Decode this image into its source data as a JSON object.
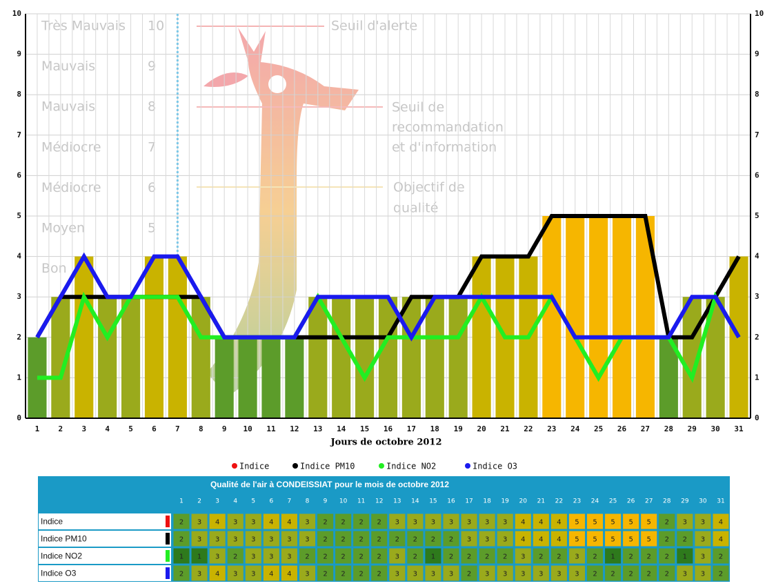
{
  "chart_data": {
    "type": "bar",
    "x_label": "Jours de octobre 2012",
    "categories": [
      "1",
      "2",
      "3",
      "4",
      "5",
      "6",
      "7",
      "8",
      "9",
      "10",
      "11",
      "12",
      "13",
      "14",
      "15",
      "16",
      "17",
      "18",
      "19",
      "20",
      "21",
      "22",
      "23",
      "24",
      "25",
      "26",
      "27",
      "28",
      "29",
      "30",
      "31"
    ],
    "series": [
      {
        "name": "Indice",
        "type": "bar",
        "color": "#ee1111",
        "values": [
          2,
          3,
          4,
          3,
          3,
          4,
          4,
          3,
          2,
          2,
          2,
          2,
          3,
          3,
          3,
          3,
          3,
          3,
          3,
          4,
          4,
          4,
          5,
          5,
          5,
          5,
          5,
          2,
          3,
          3,
          4
        ]
      },
      {
        "name": "Indice PM10",
        "type": "line",
        "color": "#000000",
        "values": [
          2,
          3,
          3,
          3,
          3,
          3,
          3,
          3,
          2,
          2,
          2,
          2,
          2,
          2,
          2,
          2,
          3,
          3,
          3,
          4,
          4,
          4,
          5,
          5,
          5,
          5,
          5,
          2,
          2,
          3,
          4
        ]
      },
      {
        "name": "Indice NO2",
        "type": "line",
        "color": "#22ee22",
        "values": [
          1,
          1,
          3,
          2,
          3,
          3,
          3,
          2,
          2,
          2,
          2,
          2,
          3,
          2,
          1,
          2,
          2,
          2,
          2,
          3,
          2,
          2,
          3,
          2,
          1,
          2,
          2,
          2,
          1,
          3,
          2
        ]
      },
      {
        "name": "Indice O3",
        "type": "line",
        "color": "#1a1aee",
        "values": [
          2,
          3,
          4,
          3,
          3,
          4,
          4,
          3,
          2,
          2,
          2,
          2,
          3,
          3,
          3,
          3,
          2,
          3,
          3,
          3,
          3,
          3,
          3,
          2,
          2,
          2,
          2,
          2,
          3,
          3,
          2
        ]
      }
    ],
    "level_colors": [
      "#2e7a1c",
      "#5c9c2a",
      "#9aaa1c",
      "#c9b300",
      "#f6b600"
    ],
    "ylim": [
      0,
      10
    ],
    "yticks": [
      0,
      1,
      2,
      3,
      4,
      5,
      6,
      7,
      8,
      9,
      10
    ],
    "grid": true,
    "marker_day": 7,
    "watermark": {
      "levels": [
        {
          "label": "Très Mauvais",
          "value": 10
        },
        {
          "label": "Mauvais",
          "value": 9
        },
        {
          "label": "Mauvais",
          "value": 8
        },
        {
          "label": "Médiocre",
          "value": 7
        },
        {
          "label": "Médiocre",
          "value": 6
        },
        {
          "label": "Moyen",
          "value": 5
        },
        {
          "label": "Bon"
        }
      ],
      "alert": "Seuil d'alerte",
      "recommendation": [
        "Seuil de",
        "recommandation",
        "et d'information"
      ],
      "objective": [
        "Objectif de",
        "qualité"
      ]
    },
    "table_title": "Qualité de l'air à CONDEISSIAT pour le mois de octobre 2012"
  }
}
